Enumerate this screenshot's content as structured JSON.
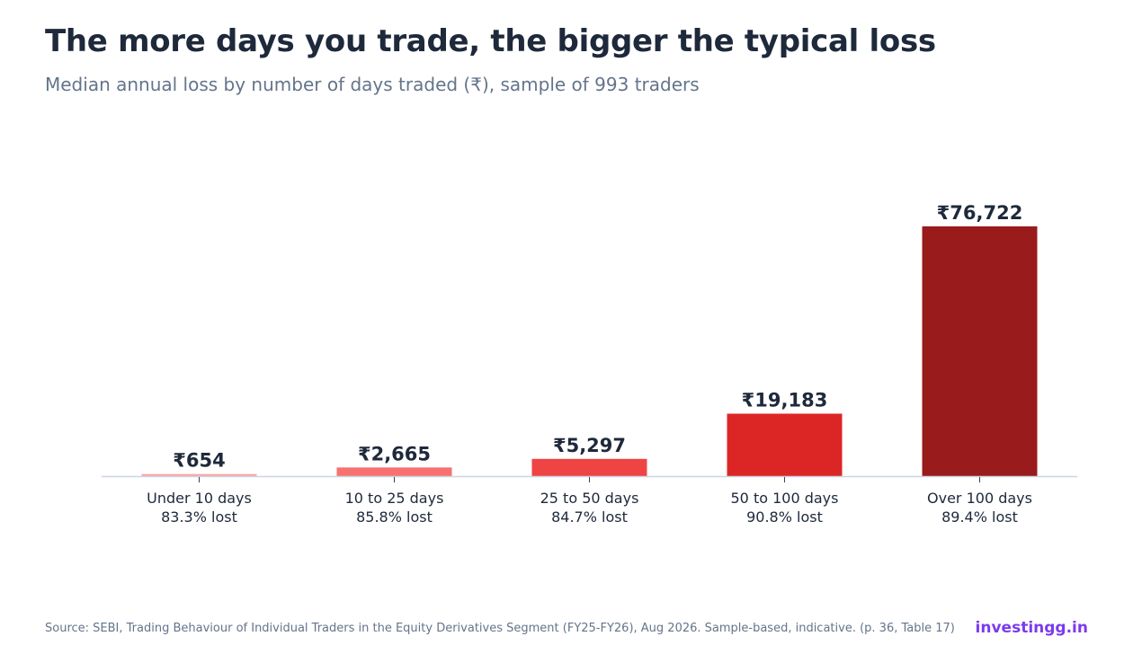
{
  "chart_data": {
    "type": "bar",
    "title": "The more days you trade, the bigger the typical loss",
    "subtitle": "Median annual loss by number of days traded (₹), sample of 993 traders",
    "categories": [
      "Under 10 days",
      "10 to 25 days",
      "25 to 50 days",
      "50 to 100 days",
      "Over 100 days"
    ],
    "sublabels": [
      "83.3% lost",
      "85.8% lost",
      "84.7% lost",
      "90.8% lost",
      "89.4% lost"
    ],
    "values": [
      654,
      2665,
      5297,
      19183,
      76722
    ],
    "value_labels": [
      "₹654",
      "₹2,665",
      "₹5,297",
      "₹19,183",
      "₹76,722"
    ],
    "colors": [
      "#fca5a5",
      "#f87171",
      "#ef4444",
      "#dc2626",
      "#991b1b"
    ],
    "ylim": [
      0,
      76722
    ],
    "grid": false,
    "legend": "none"
  },
  "footer": {
    "source": "Source: SEBI, Trading Behaviour of Individual Traders in the Equity Derivatives Segment (FY25-FY26), Aug 2026. Sample-based, indicative. (p. 36, Table 17)",
    "brand": "investingg.in"
  }
}
